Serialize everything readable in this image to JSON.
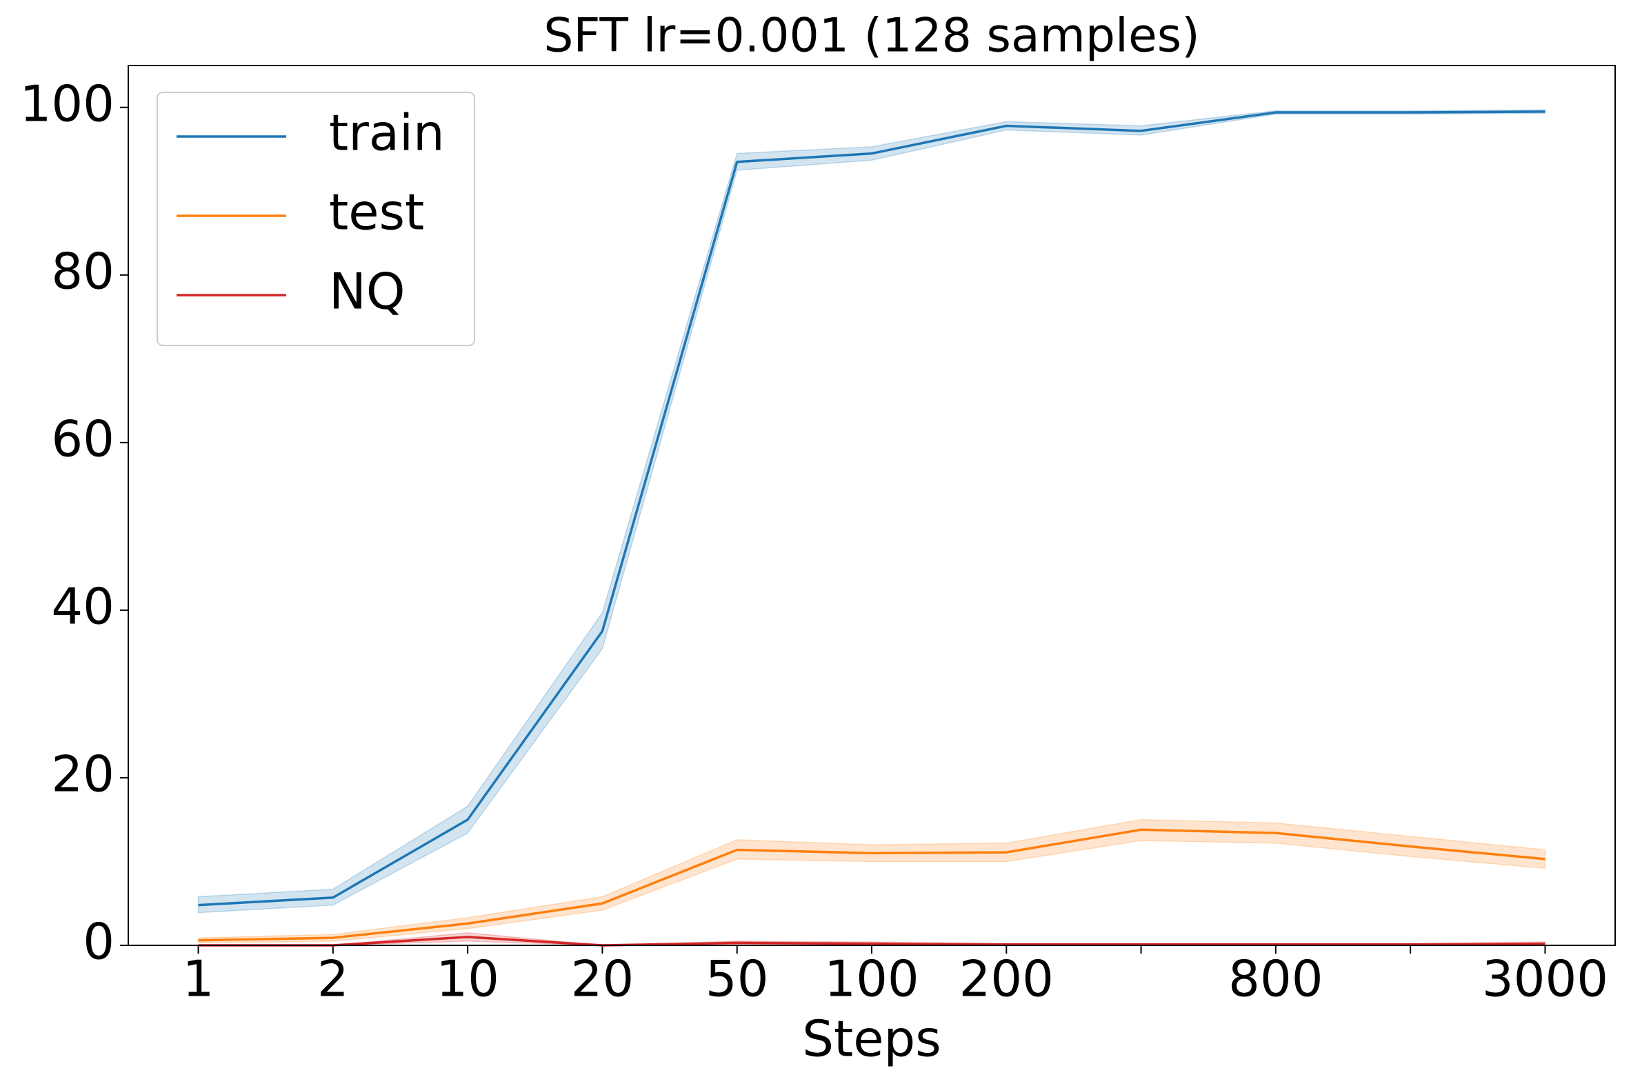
{
  "chart_data": {
    "type": "line",
    "title": "SFT lr=0.001  (128 samples)",
    "x_label": "Steps",
    "categories": [
      "1",
      "2",
      "10",
      "20",
      "50",
      "100",
      "200",
      null,
      "800",
      null,
      "3000"
    ],
    "series": [
      {
        "name": "train",
        "color": "#1f77b4",
        "values": [
          4.8,
          5.7,
          15,
          37.5,
          93.5,
          94.5,
          97.8,
          97.2,
          99.4,
          99.4,
          99.5
        ],
        "lower": [
          3.9,
          4.8,
          13.4,
          35.4,
          92.5,
          93.7,
          97.3,
          96.7,
          99.2,
          99.2,
          99.3
        ],
        "upper": [
          5.8,
          6.7,
          16.6,
          39.7,
          94.5,
          95.3,
          98.3,
          97.8,
          99.6,
          99.6,
          99.7
        ]
      },
      {
        "name": "test",
        "color": "#ff7f0e",
        "values": [
          0.6,
          0.9,
          2.6,
          5.0,
          11.4,
          11.0,
          11.1,
          13.8,
          13.4,
          11.8,
          10.3
        ],
        "lower": [
          0.3,
          0.5,
          2.0,
          4.2,
          10.3,
          10.0,
          10.0,
          12.5,
          12.2,
          10.6,
          9.2
        ],
        "upper": [
          0.9,
          1.3,
          3.3,
          5.8,
          12.6,
          12.0,
          12.2,
          15.0,
          14.6,
          13.0,
          11.4
        ]
      },
      {
        "name": "NQ",
        "color": "#d62728",
        "values": [
          0,
          0,
          1.0,
          0,
          0.3,
          0.2,
          0.1,
          0.1,
          0.1,
          0.1,
          0.2
        ],
        "lower": [
          0,
          0,
          0.5,
          0,
          0,
          0,
          0,
          0,
          0,
          0,
          0
        ],
        "upper": [
          0,
          0,
          1.5,
          0,
          0.5,
          0.4,
          0.2,
          0.2,
          0.2,
          0.2,
          0.4
        ]
      }
    ],
    "ylim": [
      0,
      105
    ],
    "yticks": [
      0,
      20,
      40,
      60,
      80,
      100
    ],
    "legend": "upper left"
  }
}
